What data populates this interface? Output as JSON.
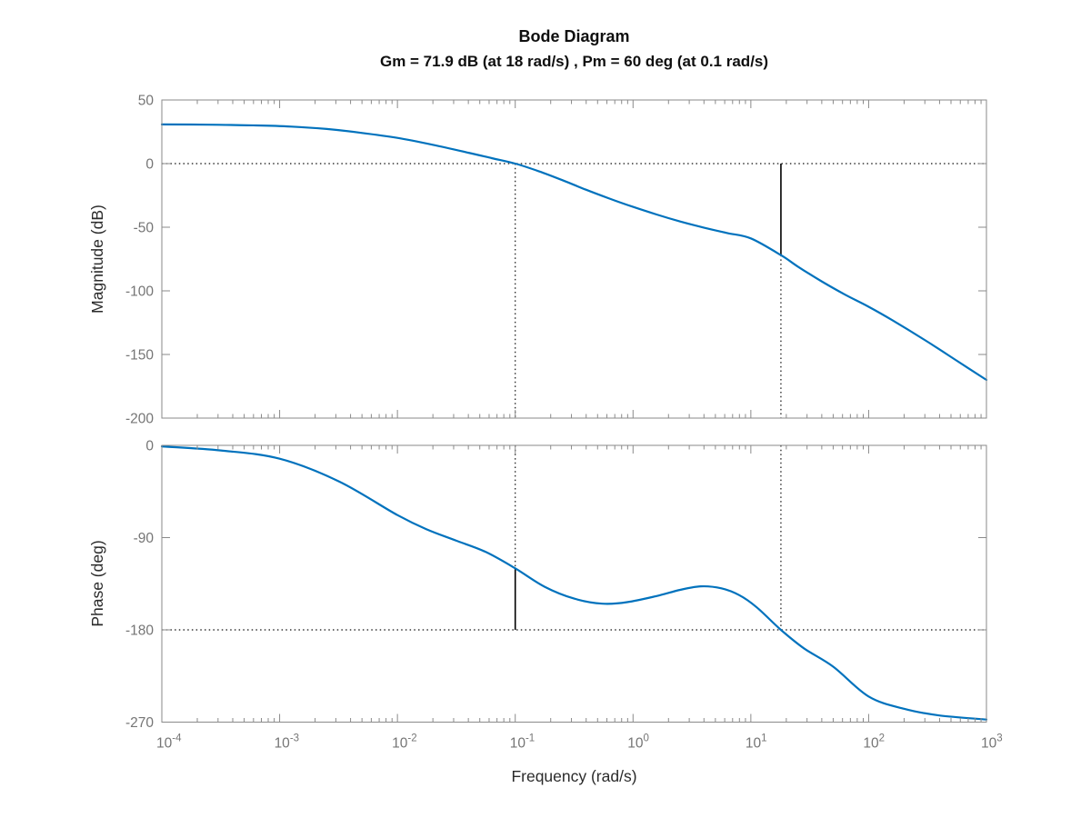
{
  "title": "Bode Diagram",
  "subtitle": "Gm = 71.9 dB (at 18 rad/s) ,  Pm = 60 deg (at 0.1 rad/s)",
  "xlabel": "Frequency  (rad/s)",
  "colors": {
    "curve": "#0072BD",
    "axis_box": "#8a8a8a",
    "tick_mark": "#8a8a8a",
    "tick_label": "#757575",
    "reference_line": "#0f0f0f",
    "margin_marker": "#000000",
    "background": "#ffffff"
  },
  "chart_data": [
    {
      "type": "line",
      "name": "magnitude",
      "ylabel": "Magnitude (dB)",
      "ylim": [
        -200,
        50
      ],
      "yticks": [
        50,
        0,
        -50,
        -100,
        -150,
        -200
      ],
      "xscale": "log",
      "xlim_log10": [
        -4,
        3
      ],
      "xtick_exponents": [
        -4,
        -3,
        -2,
        -1,
        0,
        1,
        2,
        3
      ],
      "reference_db": 0,
      "points_log10w_db": [
        [
          -4.0,
          30.8
        ],
        [
          -3.6,
          30.6
        ],
        [
          -3.2,
          30.0
        ],
        [
          -2.9,
          29.1
        ],
        [
          -2.6,
          27.2
        ],
        [
          -2.3,
          24.1
        ],
        [
          -2.0,
          20.2
        ],
        [
          -1.7,
          14.8
        ],
        [
          -1.4,
          8.6
        ],
        [
          -1.2,
          4.3
        ],
        [
          -1.0,
          0.0
        ],
        [
          -0.8,
          -6.0
        ],
        [
          -0.6,
          -13.0
        ],
        [
          -0.4,
          -20.5
        ],
        [
          -0.2,
          -27.5
        ],
        [
          0.0,
          -34.0
        ],
        [
          0.2,
          -40.0
        ],
        [
          0.4,
          -45.5
        ],
        [
          0.6,
          -50.3
        ],
        [
          0.8,
          -54.6
        ],
        [
          1.0,
          -58.8
        ],
        [
          1.2553,
          -71.9
        ],
        [
          1.4,
          -81.0
        ],
        [
          1.6,
          -92.5
        ],
        [
          1.8,
          -103.0
        ],
        [
          2.0,
          -112.5
        ],
        [
          2.2,
          -123.0
        ],
        [
          2.5,
          -140.0
        ],
        [
          2.75,
          -155.0
        ],
        [
          3.0,
          -170.0
        ]
      ]
    },
    {
      "type": "line",
      "name": "phase",
      "ylabel": "Phase (deg)",
      "ylim": [
        -270,
        0
      ],
      "yticks": [
        0,
        -90,
        -180,
        -270
      ],
      "xscale": "log",
      "xlim_log10": [
        -4,
        3
      ],
      "xtick_exponents": [
        -4,
        -3,
        -2,
        -1,
        0,
        1,
        2,
        3
      ],
      "reference_deg": -180,
      "points_log10w_deg": [
        [
          -4.0,
          -1.0
        ],
        [
          -3.5,
          -5.0
        ],
        [
          -3.0,
          -13.0
        ],
        [
          -2.5,
          -35.0
        ],
        [
          -2.0,
          -68.0
        ],
        [
          -1.75,
          -82.0
        ],
        [
          -1.5,
          -93.0
        ],
        [
          -1.25,
          -104.0
        ],
        [
          -1.0,
          -120.0
        ],
        [
          -0.75,
          -138.0
        ],
        [
          -0.5,
          -149.5
        ],
        [
          -0.26,
          -154.5
        ],
        [
          -0.05,
          -153.0
        ],
        [
          0.2,
          -147.0
        ],
        [
          0.4,
          -141.0
        ],
        [
          0.576,
          -137.5
        ],
        [
          0.75,
          -139.5
        ],
        [
          0.9,
          -146.0
        ],
        [
          1.05,
          -158.0
        ],
        [
          1.2553,
          -180.0
        ],
        [
          1.45,
          -198.0
        ],
        [
          1.7,
          -216.0
        ],
        [
          2.0,
          -245.0
        ],
        [
          2.3,
          -257.0
        ],
        [
          2.6,
          -263.5
        ],
        [
          3.0,
          -267.5
        ]
      ]
    }
  ],
  "margins": {
    "gain_margin_db": 71.9,
    "gain_margin_freq_log10": 1.2553,
    "gain_margin_mag_db": -71.9,
    "phase_margin_deg": 60,
    "phase_margin_freq_log10": -1,
    "phase_at_crossover_deg": -120
  }
}
